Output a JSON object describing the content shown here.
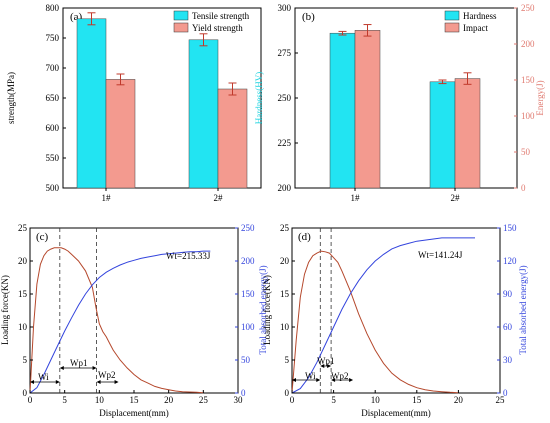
{
  "colors": {
    "tensile": "#22e4f2",
    "yield": "#f39a8f",
    "hardness": "#22e4f2",
    "impact": "#f39a8f",
    "force": "#b5482c",
    "energy": "#3344dd",
    "hardness_axis": "#22d4e0",
    "impact_axis": "#e07a70",
    "axis": "#000000"
  },
  "chart_data": [
    {
      "panel": "(a)",
      "type": "bar",
      "categories": [
        "1#",
        "2#"
      ],
      "series": [
        {
          "name": "Tensile strength",
          "values": [
            782,
            747
          ],
          "errors": [
            10,
            10
          ]
        },
        {
          "name": "Yield strength",
          "values": [
            681,
            665
          ],
          "errors": [
            9,
            10
          ]
        }
      ],
      "ylabel": "strength(MPa)",
      "ylim": [
        500,
        800
      ],
      "yticks": [
        "500",
        "550",
        "600",
        "650",
        "700",
        "750",
        "800"
      ],
      "legend": "top-right"
    },
    {
      "panel": "(b)",
      "type": "bar",
      "categories": [
        "1#",
        "2#"
      ],
      "series": [
        {
          "name": "Hardness",
          "values": [
            286,
            259
          ],
          "errors": [
            1,
            1
          ],
          "axis": "left"
        },
        {
          "name": "Impact",
          "values": [
            219,
            152
          ],
          "errors": [
            8,
            8
          ],
          "axis": "right"
        }
      ],
      "ylabel_left": "Hardness(HV)",
      "ylim_left": [
        200,
        300
      ],
      "yticks_left": [
        "200",
        "225",
        "250",
        "275",
        "300"
      ],
      "ylabel_right": "Energy(J)",
      "ylim_right": [
        0,
        250
      ],
      "yticks_right": [
        "0",
        "50",
        "100",
        "150",
        "200",
        "250"
      ],
      "legend": "top-right"
    },
    {
      "panel": "(c)",
      "type": "line",
      "xlabel": "Displacement(mm)",
      "xlim": [
        0,
        30
      ],
      "xticks": [
        "0",
        "5",
        "10",
        "15",
        "20",
        "25",
        "30"
      ],
      "ylabel_left": "Loading force(KN)",
      "ylim_left": [
        0,
        25
      ],
      "yticks_left": [
        "0",
        "5",
        "10",
        "15",
        "20",
        "25"
      ],
      "ylabel_right": "Total absorbed energy(J)",
      "ylim_right": [
        0,
        250
      ],
      "yticks_right": [
        "0",
        "50",
        "100",
        "150",
        "200",
        "250"
      ],
      "series": [
        {
          "axis": "left",
          "x": [
            0,
            0.5,
            1,
            1.5,
            2,
            2.5,
            3,
            3.5,
            4,
            4.5,
            5,
            5.5,
            6,
            7,
            8,
            9,
            9.5,
            10,
            10.5,
            11,
            11.5,
            12,
            13,
            14,
            15,
            16,
            17,
            18,
            19,
            20,
            21,
            22,
            23,
            24,
            25
          ],
          "y": [
            0,
            10,
            16.5,
            19.5,
            20.8,
            21.5,
            21.8,
            22,
            22,
            22,
            21.8,
            21.5,
            21,
            20,
            18.5,
            16,
            13,
            10.5,
            9.3,
            8.5,
            7.5,
            6.5,
            5,
            3.8,
            2.8,
            2,
            1.5,
            1,
            0.7,
            0.5,
            0.3,
            0.2,
            0.15,
            0.1,
            0.05
          ]
        },
        {
          "axis": "right",
          "x": [
            0,
            1,
            2,
            3,
            4,
            5,
            6,
            7,
            8,
            9,
            10,
            11,
            12,
            13,
            14,
            15,
            16,
            17,
            18,
            19,
            20,
            21,
            22,
            23,
            24,
            25,
            26
          ],
          "y": [
            0,
            8,
            28,
            50,
            72,
            94,
            114,
            133,
            150,
            164,
            175,
            183,
            189,
            194,
            198,
            201,
            204,
            206,
            208,
            210,
            211,
            212,
            213,
            214,
            214,
            215,
            215
          ]
        }
      ],
      "vlines": [
        4.3,
        9.6
      ],
      "annotations": {
        "wt": "Wt=215.33J",
        "wi": "Wi",
        "wp1": "Wp1",
        "wp2": "Wp2"
      }
    },
    {
      "panel": "(d)",
      "type": "line",
      "xlabel": "Displacement(mm)",
      "xlim": [
        0,
        25
      ],
      "xticks": [
        "0",
        "5",
        "10",
        "15",
        "20",
        "25"
      ],
      "ylabel_left": "Loading force(KN)",
      "ylim_left": [
        0,
        25
      ],
      "yticks_left": [
        "0",
        "5",
        "10",
        "15",
        "20",
        "25"
      ],
      "ylabel_right": "Total absorbed energy(J)",
      "ylim_right": [
        0,
        150
      ],
      "yticks_right": [
        "0",
        "30",
        "60",
        "90",
        "120",
        "150"
      ],
      "series": [
        {
          "axis": "left",
          "x": [
            0,
            0.5,
            1,
            1.5,
            2,
            2.5,
            3,
            3.5,
            4,
            4.5,
            5,
            5.5,
            6,
            7,
            8,
            9,
            10,
            11,
            12,
            13,
            14,
            15,
            16,
            17,
            18,
            19,
            20
          ],
          "y": [
            0,
            8,
            14.5,
            18,
            19.8,
            20.8,
            21.2,
            21.5,
            21.4,
            21.2,
            20.5,
            19.8,
            18.5,
            15.5,
            12,
            9,
            6.5,
            4.5,
            3,
            2,
            1.3,
            0.8,
            0.5,
            0.3,
            0.2,
            0.1,
            0.05
          ]
        },
        {
          "axis": "right",
          "x": [
            0,
            1,
            2,
            3,
            4,
            5,
            6,
            7,
            8,
            9,
            10,
            11,
            12,
            13,
            14,
            15,
            16,
            17,
            18,
            19,
            20,
            21,
            22
          ],
          "y": [
            0,
            4,
            14,
            28,
            44,
            60,
            76,
            90,
            102,
            112,
            120,
            126,
            131,
            134,
            136,
            138,
            139,
            140,
            141,
            141,
            141,
            141,
            141
          ]
        }
      ],
      "vlines": [
        3.4,
        4.7
      ],
      "annotations": {
        "wt": "Wt=141.24J",
        "wi": "Wi",
        "wp1": "Wp1",
        "wp2": "Wp2"
      }
    }
  ]
}
